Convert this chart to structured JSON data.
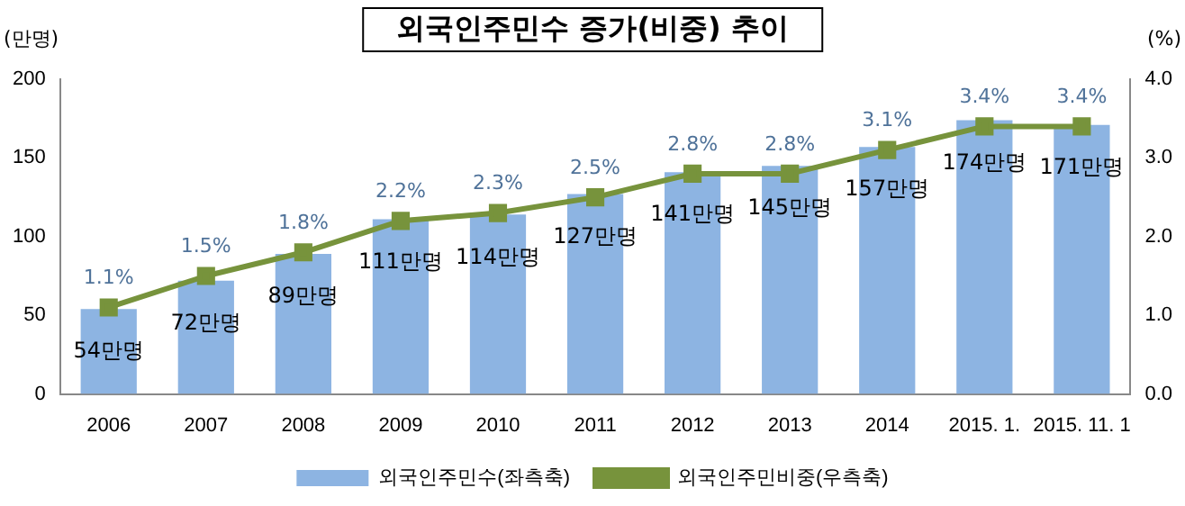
{
  "chart_data": {
    "type": "bar",
    "title": "외국인주민수 증가(비중) 추이",
    "ylabel": "(만명)",
    "y2label": "(%)",
    "categories": [
      "2006",
      "2007",
      "2008",
      "2009",
      "2010",
      "2011",
      "2012",
      "2013",
      "2014",
      "2015. 1.",
      "2015. 11. 1"
    ],
    "series": [
      {
        "name": "외국인주민수(좌측축)",
        "color": "#8db4e2",
        "values": [
          54,
          72,
          89,
          111,
          114,
          127,
          141,
          145,
          157,
          174,
          171
        ],
        "value_labels": [
          "54만명",
          "72만명",
          "89만명",
          "111만명",
          "114만명",
          "127만명",
          "141만명",
          "145만명",
          "157만명",
          "174만명",
          "171만명"
        ]
      },
      {
        "name": "외국인주민비중(우측축)",
        "type": "line",
        "axis": "y2",
        "color": "#77933c",
        "marker": "square",
        "values": [
          1.1,
          1.5,
          1.8,
          2.2,
          2.3,
          2.5,
          2.8,
          2.8,
          3.1,
          3.4,
          3.4
        ],
        "value_labels": [
          "1.1%",
          "1.5%",
          "1.8%",
          "2.2%",
          "2.3%",
          "2.5%",
          "2.8%",
          "2.8%",
          "3.1%",
          "3.4%",
          "3.4%"
        ]
      }
    ],
    "ylim": [
      0,
      200
    ],
    "yticks": [
      0,
      50,
      100,
      150,
      200
    ],
    "y2lim": [
      0,
      4
    ],
    "y2ticks": [
      {
        "value": 0,
        "label": "0.0"
      },
      {
        "value": 1,
        "label": "1.0"
      },
      {
        "value": 2,
        "label": "2.0"
      },
      {
        "value": 3,
        "label": "3.0"
      },
      {
        "value": 4,
        "label": "4.0"
      }
    ],
    "grid": false,
    "legend": "bottom"
  }
}
